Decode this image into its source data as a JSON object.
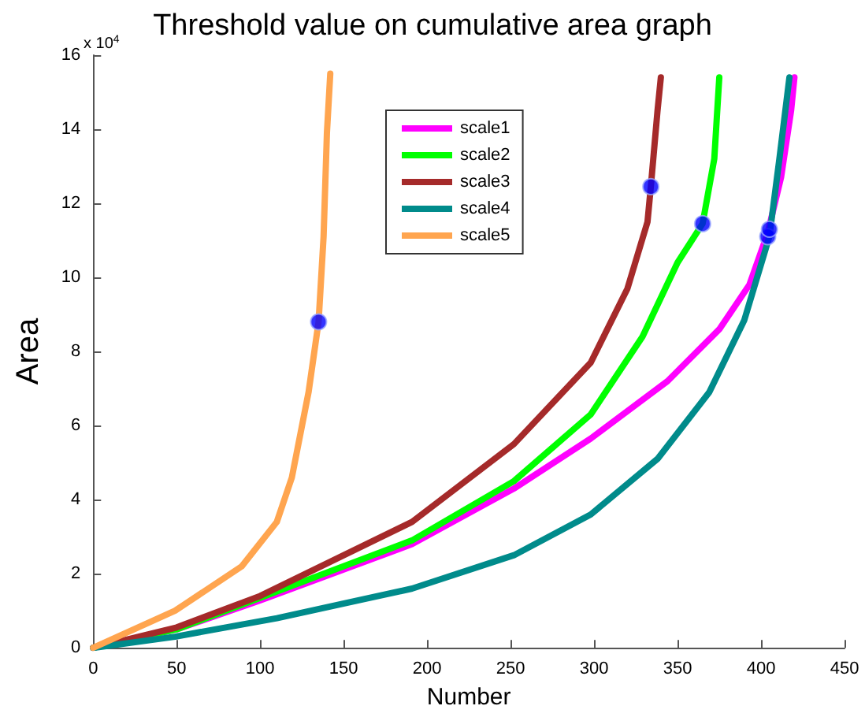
{
  "chart_data": {
    "type": "line",
    "title": "Threshold value on cumulative area graph",
    "xlabel": "Number",
    "ylabel": "Area",
    "annotations": [
      "x 10$^{4}$"
    ],
    "xlim": [
      0,
      450
    ],
    "xticks": [
      0,
      50,
      100,
      150,
      200,
      250,
      300,
      350,
      400,
      450
    ],
    "ylim": [
      0,
      16
    ],
    "yticks": [
      0,
      2,
      4,
      6,
      8,
      10,
      12,
      14,
      16
    ],
    "legend": "top",
    "marker": "none",
    "series": [
      {
        "name": "scale1",
        "color": "#ff00ff",
        "x": [
          0,
          50,
          100,
          191,
          252,
          298,
          344,
          375,
          393,
          404,
          412,
          418,
          420
        ],
        "values": [
          0,
          0.5,
          1.28,
          2.8,
          4.3,
          5.65,
          7.2,
          8.6,
          9.8,
          11.2,
          12.7,
          14.5,
          15.4
        ]
      },
      {
        "name": "scale2",
        "color": "#00ff00",
        "x": [
          0,
          50,
          100,
          191,
          252,
          298,
          329,
          350,
          365,
          372,
          375
        ],
        "values": [
          0,
          0.5,
          1.35,
          2.9,
          4.5,
          6.3,
          8.4,
          10.4,
          11.45,
          13.2,
          15.4
        ]
      },
      {
        "name": "scale3",
        "color": "#a52a2a",
        "x": [
          0,
          50,
          100,
          191,
          252,
          298,
          320,
          332,
          334,
          338,
          340
        ],
        "values": [
          0,
          0.55,
          1.4,
          3.4,
          5.5,
          7.7,
          9.7,
          11.5,
          12.45,
          14.5,
          15.4
        ]
      },
      {
        "name": "scale4",
        "color": "#008b8b",
        "x": [
          0,
          49,
          110,
          191,
          252,
          298,
          338,
          369,
          390,
          403,
          405,
          411,
          417
        ],
        "values": [
          0,
          0.3,
          0.8,
          1.6,
          2.5,
          3.6,
          5.1,
          6.9,
          8.85,
          10.8,
          11.1,
          13.2,
          15.4
        ]
      },
      {
        "name": "scale5",
        "color": "#ffa54f",
        "x": [
          0,
          49,
          89,
          110,
          119,
          129,
          135,
          138,
          140,
          142
        ],
        "values": [
          0,
          1.0,
          2.2,
          3.4,
          4.6,
          6.9,
          8.8,
          11.1,
          13.9,
          15.5
        ]
      },
      {
        "type": "scatter",
        "marker": "circle",
        "color": "#0000ff",
        "x": [
          135,
          334,
          365,
          404,
          405
        ],
        "values": [
          8.8,
          12.45,
          11.45,
          11.1,
          11.3
        ]
      }
    ]
  }
}
